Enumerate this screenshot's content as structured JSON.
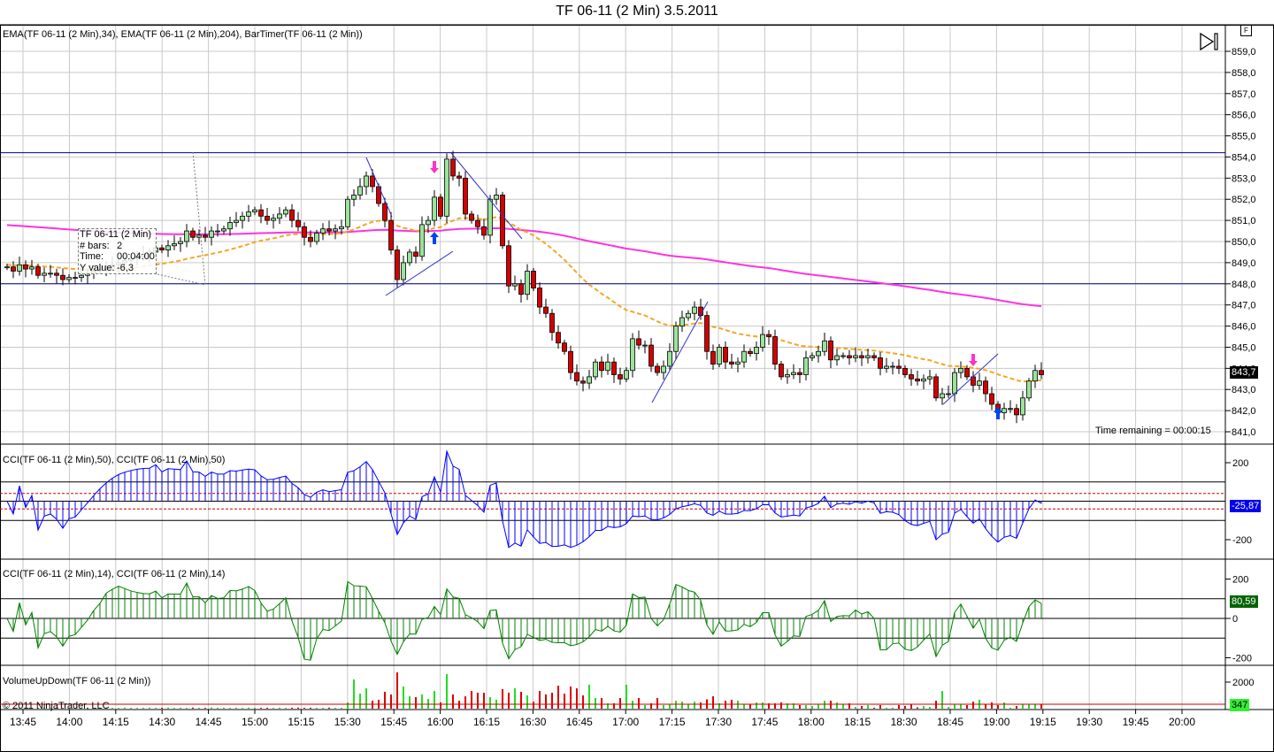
{
  "title": "TF 06-11 (2 Min)  3.5.2011",
  "indicator_labels": {
    "price": "EMA(TF 06-11 (2 Min),34), EMA(TF 06-11 (2 Min),204), BarTimer(TF 06-11 (2 Min))",
    "cci50": "CCI(TF 06-11 (2 Min),50), CCI(TF 06-11 (2 Min),50)",
    "cci14": "CCI(TF 06-11 (2 Min),14), CCI(TF 06-11 (2 Min),14)",
    "volume": "VolumeUpDown(TF 06-11 (2 Min))"
  },
  "copyright": "© 2011 NinjaTrader, LLC",
  "time_remaining": "Time remaining = 00:00:15",
  "tooltip": {
    "title": "TF 06-11 (2 Min)",
    "bars_label": "# bars:",
    "bars_value": "2",
    "time_label": "Time:",
    "time_value": "00:04:00",
    "y_label": "Y value:",
    "y_value": "-6,3"
  },
  "buttons": {
    "f_label": "F",
    "play_icon": "play-to-end-icon"
  },
  "markers": {
    "last_price": "843,7",
    "cci50": "-25,87",
    "cci14": "80,59",
    "volume": "347"
  },
  "price_axis": [
    "859,0",
    "858,0",
    "857,0",
    "856,0",
    "855,0",
    "854,0",
    "853,0",
    "852,0",
    "851,0",
    "850,0",
    "849,0",
    "848,0",
    "847,0",
    "846,0",
    "845,0",
    "844,0",
    "843,0",
    "842,0",
    "841,0"
  ],
  "cci50_axis": [
    "200",
    "-200"
  ],
  "cci14_axis": [
    "200",
    "0",
    "-200"
  ],
  "volume_axis": [
    "2000"
  ],
  "time_axis": [
    "13:45",
    "14:00",
    "14:15",
    "14:30",
    "14:45",
    "15:00",
    "15:15",
    "15:30",
    "15:45",
    "16:00",
    "16:15",
    "16:30",
    "16:45",
    "17:00",
    "17:15",
    "17:30",
    "17:45",
    "18:00",
    "18:15",
    "18:30",
    "18:45",
    "19:00",
    "19:15",
    "19:30",
    "19:45",
    "20:00"
  ],
  "colors": {
    "up": "#9be39b",
    "down": "#d40000",
    "ema34": "#f5a623",
    "ema204": "#ff33dd",
    "cci50": "#0000ff",
    "cci14": "#008000",
    "vol_up": "#22dd22",
    "vol_down": "#dd0000",
    "hline": "#00008b"
  },
  "chart_data": {
    "type": "candlestick",
    "bar_interval_min": 2,
    "ylim": [
      840.5,
      859.5
    ],
    "horizontal_lines": [
      854.2,
      848.0
    ],
    "ema34_seed": 848.9,
    "ema204_seed": 850.8,
    "closes": [
      848.8,
      848.6,
      848.9,
      848.7,
      848.8,
      848.4,
      848.5,
      848.5,
      848.4,
      848.2,
      848.3,
      848.3,
      848.4,
      848.5,
      848.6,
      848.7,
      848.8,
      848.9,
      849.0,
      849.1,
      849.2,
      849.3,
      849.4,
      849.5,
      849.7,
      849.6,
      849.8,
      849.9,
      850.0,
      850.5,
      850.2,
      850.3,
      850.2,
      850.5,
      850.5,
      850.6,
      850.9,
      851.0,
      851.2,
      851.4,
      851.5,
      851.2,
      851.0,
      851.1,
      851.3,
      851.5,
      851.0,
      850.7,
      850.2,
      850.0,
      850.4,
      850.6,
      850.5,
      850.6,
      850.7,
      852.0,
      852.2,
      852.6,
      853.1,
      852.6,
      851.8,
      851.0,
      849.6,
      848.2,
      849.0,
      849.5,
      849.3,
      850.8,
      851.0,
      852.1,
      851.2,
      853.9,
      853.1,
      853.0,
      851.3,
      851.0,
      850.7,
      850.3,
      852.0,
      852.2,
      849.8,
      847.9,
      848.0,
      847.5,
      848.6,
      847.8,
      846.9,
      846.6,
      845.7,
      845.2,
      844.8,
      843.8,
      843.4,
      843.3,
      843.6,
      844.3,
      843.9,
      844.3,
      843.7,
      843.5,
      843.9,
      845.4,
      845.1,
      845.1,
      844.1,
      843.8,
      844.1,
      844.8,
      846.0,
      846.4,
      846.6,
      846.9,
      846.5,
      844.8,
      844.2,
      845.0,
      844.3,
      844.2,
      844.3,
      844.8,
      844.7,
      845.0,
      845.6,
      845.5,
      844.2,
      843.6,
      843.7,
      843.8,
      843.7,
      844.5,
      844.6,
      844.8,
      845.3,
      844.4,
      844.6,
      844.6,
      844.5,
      844.6,
      844.5,
      844.6,
      844.5,
      844.0,
      844.1,
      844.1,
      844.0,
      843.7,
      843.5,
      843.4,
      843.5,
      843.6,
      842.6,
      842.8,
      842.8,
      843.8,
      844.0,
      843.6,
      843.2,
      843.4,
      842.8,
      842.3,
      841.9,
      842.1,
      842.1,
      841.8,
      842.6,
      843.4,
      843.9,
      843.7
    ],
    "volumes": [
      60,
      50,
      70,
      60,
      50,
      60,
      80,
      60,
      50,
      60,
      70,
      60,
      50,
      60,
      60,
      70,
      80,
      70,
      60,
      80,
      70,
      60,
      70,
      80,
      60,
      70,
      80,
      60,
      70,
      60,
      80,
      70,
      60,
      90,
      70,
      80,
      60,
      70,
      60,
      80,
      70,
      60,
      70,
      60,
      80,
      60,
      70,
      80,
      60,
      70,
      60,
      70,
      80,
      60,
      70,
      470,
      2200,
      1130,
      1530,
      600,
      670,
      1270,
      1070,
      2730,
      1670,
      930,
      870,
      1070,
      730,
      1330,
      470,
      2600,
      1070,
      600,
      930,
      1330,
      1200,
      1200,
      870,
      670,
      1470,
      1200,
      1530,
      1270,
      1000,
      530,
      1330,
      1070,
      1200,
      1730,
      1130,
      1670,
      1530,
      1000,
      1800,
      800,
      800,
      400,
      400,
      800,
      1800,
      600,
      800,
      270,
      400,
      800,
      270,
      330,
      600,
      530,
      330,
      530,
      470,
      700,
      930,
      400,
      600,
      670,
      600,
      330,
      330,
      470,
      470,
      400,
      400,
      470,
      400,
      400,
      270,
      270,
      200,
      330,
      600,
      600,
      470,
      330,
      400,
      130,
      200,
      270,
      70,
      270,
      70,
      70,
      270,
      200,
      330,
      100,
      200,
      130,
      600,
      1330,
      130,
      330,
      330,
      270,
      530,
      670,
      330,
      470,
      270,
      470,
      70,
      200,
      330,
      330,
      330,
      347
    ],
    "cci_periods": [
      50,
      14
    ],
    "cci50_ylim": [
      -300,
      250
    ],
    "cci14_ylim": [
      -250,
      250
    ],
    "volume_ylim": [
      0,
      2800
    ]
  }
}
